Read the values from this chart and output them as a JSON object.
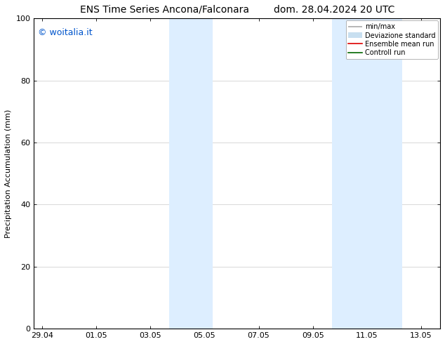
{
  "title": "ENS Time Series Ancona/Falconara        dom. 28.04.2024 20 UTC",
  "ylabel": "Precipitation Accumulation (mm)",
  "ylim": [
    0,
    100
  ],
  "yticks": [
    0,
    20,
    40,
    60,
    80,
    100
  ],
  "xtick_labels": [
    "29.04",
    "01.05",
    "03.05",
    "05.05",
    "07.05",
    "09.05",
    "11.05",
    "13.05"
  ],
  "xtick_positions": [
    0,
    2,
    4,
    6,
    8,
    10,
    12,
    14
  ],
  "xmin": -0.3,
  "xmax": 14.7,
  "shade_regions": [
    {
      "xmin": 4.7,
      "xmax": 6.3,
      "color": "#ddeeff"
    },
    {
      "xmin": 10.7,
      "xmax": 13.3,
      "color": "#ddeeff"
    }
  ],
  "watermark_text": "© woitalia.it",
  "watermark_color": "#0055cc",
  "watermark_fontsize": 9,
  "legend_entries": [
    {
      "label": "min/max",
      "color": "#aaaaaa",
      "lw": 1.2,
      "style": "minmax"
    },
    {
      "label": "Deviazione standard",
      "color": "#c8dff0",
      "lw": 5,
      "style": "thick"
    },
    {
      "label": "Ensemble mean run",
      "color": "#dd0000",
      "lw": 1.2,
      "style": "line"
    },
    {
      "label": "Controll run",
      "color": "#006600",
      "lw": 1.2,
      "style": "line"
    }
  ],
  "title_fontsize": 10,
  "tick_fontsize": 8,
  "ylabel_fontsize": 8,
  "bg_color": "#ffffff",
  "plot_bg_color": "#ffffff",
  "grid_color": "#bbbbbb",
  "grid_lw": 0.4,
  "spine_color": "#000000",
  "font_family": "DejaVu Sans"
}
